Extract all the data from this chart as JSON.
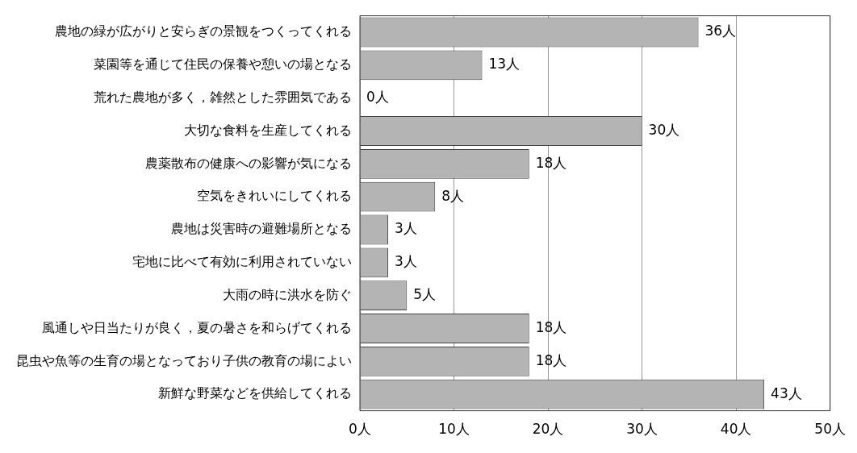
{
  "chart_data": {
    "type": "bar",
    "orientation": "horizontal",
    "categories": [
      "農地の緑が広がりと安らぎの景観をつくってくれる",
      "菜園等を通じて住民の保養や憩いの場となる",
      "荒れた農地が多く，雑然とした雰囲気である",
      "大切な食料を生産してくれる",
      "農薬散布の健康への影響が気になる",
      "空気をきれいにしてくれる",
      "農地は災害時の避難場所となる",
      "宅地に比べて有効に利用されていない",
      "大雨の時に洪水を防ぐ",
      "風通しや日当たりが良く，夏の暑さを和らげてくれる",
      "昆虫や魚等の生育の場となっており子供の教育の場によい",
      "新鮮な野菜などを供給してくれる"
    ],
    "values": [
      36,
      13,
      0,
      30,
      18,
      8,
      3,
      3,
      5,
      18,
      18,
      43
    ],
    "value_labels": [
      "36人",
      "13人",
      "0人",
      "30人",
      "18人",
      "8人",
      "3人",
      "3人",
      "5人",
      "18人",
      "18人",
      "43人"
    ],
    "color": "#b4b4b4",
    "xlim": [
      0,
      50
    ],
    "xticks": [
      {
        "value": 0,
        "label": "0人"
      },
      {
        "value": 10,
        "label": "10人"
      },
      {
        "value": 20,
        "label": "20人"
      },
      {
        "value": 30,
        "label": "30人"
      },
      {
        "value": 40,
        "label": "40人"
      },
      {
        "value": 50,
        "label": "50人"
      }
    ],
    "grid": "x",
    "legend": false
  }
}
